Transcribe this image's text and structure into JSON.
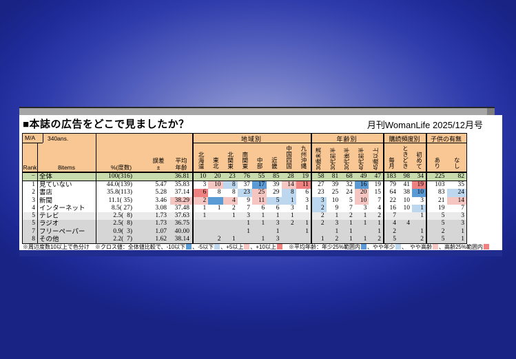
{
  "header": {
    "title": "■本誌の広告をどこで見ましたか？",
    "issue": "月刊WomanLife 2025/12月号"
  },
  "colors": {
    "db": "#5b9bd5",
    "lb": "#bdd7ee",
    "lp": "#f5c6c1",
    "rd": "#ee8080",
    "header_bg": "#f8c794",
    "total_bg": "#c8dbad"
  },
  "table": {
    "meta": {
      "ma": "M/A",
      "ans": "340ans.",
      "rank": "Rank",
      "items": "8items",
      "pct": "%(度数)",
      "err1": "誤差",
      "err2": "±",
      "avg1": "平均",
      "avg2": "年齢"
    },
    "groups": {
      "region": "地域別",
      "age": "年齢別",
      "freq": "購読頻度別",
      "child": "子供の有無"
    },
    "region_cols": [
      "北海道",
      "東北",
      "北関東",
      "南関東",
      "中部",
      "近畿",
      "中国四国",
      "九州沖縄"
    ],
    "age_cols": [
      "30歳未満",
      "30代前半",
      "30代後半",
      "40代前半",
      "45歳以上"
    ],
    "freq_cols": [
      "毎月",
      "ときどき",
      "初めて"
    ],
    "child_cols": [
      "あり",
      "なし"
    ],
    "total_row": {
      "rank": "−",
      "item": "全体",
      "pct": "100(316)",
      "err": "",
      "avg": "36.81",
      "avg_c": "",
      "cells": [
        [
          "10",
          ""
        ],
        [
          "20",
          ""
        ],
        [
          "23",
          ""
        ],
        [
          "76",
          ""
        ],
        [
          "55",
          ""
        ],
        [
          "85",
          ""
        ],
        [
          "28",
          ""
        ],
        [
          "19",
          ""
        ],
        [
          "58",
          ""
        ],
        [
          "81",
          ""
        ],
        [
          "68",
          ""
        ],
        [
          "49",
          ""
        ],
        [
          "47",
          ""
        ],
        [
          "183",
          ""
        ],
        [
          "98",
          ""
        ],
        [
          "34",
          ""
        ],
        [
          "225",
          ""
        ],
        [
          "82",
          ""
        ]
      ]
    },
    "rows": [
      {
        "rank": "1",
        "item": "見ていない",
        "pct": "44.0(139)",
        "err": "5.47",
        "avg": "35.83",
        "avg_c": "",
        "bg": "w",
        "cells": [
          [
            "3",
            ""
          ],
          [
            "10",
            "lp"
          ],
          [
            "8",
            "lb"
          ],
          [
            "37",
            ""
          ],
          [
            "17",
            "db"
          ],
          [
            "39",
            ""
          ],
          [
            "14",
            "lp"
          ],
          [
            "11",
            "rd"
          ],
          [
            "27",
            ""
          ],
          [
            "39",
            ""
          ],
          [
            "32",
            ""
          ],
          [
            "16",
            "db"
          ],
          [
            "19",
            ""
          ],
          [
            "79",
            ""
          ],
          [
            "41",
            ""
          ],
          [
            "19",
            "rd"
          ],
          [
            "103",
            ""
          ],
          [
            "35",
            ""
          ]
        ]
      },
      {
        "rank": "2",
        "item": "書店",
        "pct": "35.8(113)",
        "err": "5.28",
        "avg": "37.14",
        "avg_c": "",
        "bg": "w",
        "cells": [
          [
            "6",
            "rd"
          ],
          [
            "8",
            ""
          ],
          [
            "8",
            ""
          ],
          [
            "23",
            "lb"
          ],
          [
            "25",
            "lp"
          ],
          [
            "29",
            ""
          ],
          [
            "8",
            "lb"
          ],
          [
            "6",
            ""
          ],
          [
            "23",
            ""
          ],
          [
            "25",
            ""
          ],
          [
            "24",
            ""
          ],
          [
            "20",
            "lp"
          ],
          [
            "15",
            ""
          ],
          [
            "64",
            ""
          ],
          [
            "38",
            ""
          ],
          [
            "10",
            "db"
          ],
          [
            "83",
            ""
          ],
          [
            "24",
            "lb"
          ]
        ]
      },
      {
        "rank": "3",
        "item": "新聞",
        "pct": "11.1( 35)",
        "err": "3.46",
        "avg": "38.29",
        "avg_c": "lp",
        "bg": "w",
        "cells": [
          [
            "2",
            "lp"
          ],
          [
            "",
            "db"
          ],
          [
            "4",
            "lp"
          ],
          [
            "9",
            ""
          ],
          [
            "11",
            "lp"
          ],
          [
            "5",
            "lb"
          ],
          [
            "1",
            "lb"
          ],
          [
            "3",
            ""
          ],
          [
            "3",
            "lb"
          ],
          [
            "10",
            ""
          ],
          [
            "5",
            ""
          ],
          [
            "10",
            "lp"
          ],
          [
            "7",
            ""
          ],
          [
            "22",
            ""
          ],
          [
            "10",
            ""
          ],
          [
            "3",
            ""
          ],
          [
            "21",
            ""
          ],
          [
            "14",
            "lp"
          ]
        ]
      },
      {
        "rank": "4",
        "item": "インターネット",
        "pct": "8.5( 27)",
        "err": "3.08",
        "avg": "37.48",
        "avg_c": "",
        "bg": "w",
        "cells": [
          [
            "1",
            ""
          ],
          [
            "1",
            ""
          ],
          [
            "2",
            ""
          ],
          [
            "7",
            ""
          ],
          [
            "6",
            ""
          ],
          [
            "6",
            ""
          ],
          [
            "3",
            ""
          ],
          [
            "1",
            ""
          ],
          [
            "2",
            "lb"
          ],
          [
            "9",
            ""
          ],
          [
            "7",
            ""
          ],
          [
            "3",
            ""
          ],
          [
            "4",
            ""
          ],
          [
            "16",
            ""
          ],
          [
            "10",
            ""
          ],
          [
            "1",
            "lb"
          ],
          [
            "19",
            ""
          ],
          [
            "7",
            ""
          ]
        ]
      },
      {
        "rank": "5",
        "item": "テレビ",
        "pct": "2.5(  8)",
        "err": "1.73",
        "avg": "37.63",
        "avg_c": "",
        "bg": "g1",
        "cells": [
          [
            "1",
            ""
          ],
          [
            "",
            ""
          ],
          [
            "1",
            ""
          ],
          [
            "3",
            ""
          ],
          [
            "1",
            ""
          ],
          [
            "1",
            ""
          ],
          [
            "1",
            ""
          ],
          [
            "",
            ""
          ],
          [
            "2",
            ""
          ],
          [
            "1",
            ""
          ],
          [
            "2",
            ""
          ],
          [
            "1",
            ""
          ],
          [
            "2",
            ""
          ],
          [
            "7",
            ""
          ],
          [
            "",
            ""
          ],
          [
            "1",
            ""
          ],
          [
            "5",
            ""
          ],
          [
            "3",
            ""
          ]
        ]
      },
      {
        "rank": "5",
        "item": "ラジオ",
        "pct": "2.5(  8)",
        "err": "1.73",
        "avg": "36.75",
        "avg_c": "",
        "bg": "g2",
        "cells": [
          [
            "",
            ""
          ],
          [
            "",
            ""
          ],
          [
            "",
            ""
          ],
          [
            "1",
            ""
          ],
          [
            "1",
            ""
          ],
          [
            "3",
            ""
          ],
          [
            "2",
            ""
          ],
          [
            "1",
            ""
          ],
          [
            "2",
            ""
          ],
          [
            "3",
            ""
          ],
          [
            "1",
            ""
          ],
          [
            "1",
            ""
          ],
          [
            "1",
            ""
          ],
          [
            "4",
            ""
          ],
          [
            "4",
            ""
          ],
          [
            "",
            ""
          ],
          [
            "5",
            ""
          ],
          [
            "3",
            ""
          ]
        ]
      },
      {
        "rank": "7",
        "item": "フリーペーパー",
        "pct": "0.9(  3)",
        "err": "1.07",
        "avg": "40.00",
        "avg_c": "",
        "bg": "g2",
        "cells": [
          [
            "",
            ""
          ],
          [
            "",
            ""
          ],
          [
            "",
            ""
          ],
          [
            "1",
            ""
          ],
          [
            "",
            ""
          ],
          [
            "1",
            ""
          ],
          [
            "",
            ""
          ],
          [
            "1",
            ""
          ],
          [
            "",
            ""
          ],
          [
            "1",
            ""
          ],
          [
            "1",
            ""
          ],
          [
            "",
            ""
          ],
          [
            "1",
            ""
          ],
          [
            "2",
            ""
          ],
          [
            "",
            ""
          ],
          [
            "1",
            ""
          ],
          [
            "2",
            ""
          ],
          [
            "1",
            ""
          ]
        ]
      },
      {
        "rank": "8",
        "item": "その他",
        "pct": "2.2(  7)",
        "err": "1.62",
        "avg": "38.14",
        "avg_c": "",
        "bg": "g2",
        "cells": [
          [
            "",
            ""
          ],
          [
            "2",
            ""
          ],
          [
            "1",
            ""
          ],
          [
            "",
            ""
          ],
          [
            "1",
            ""
          ],
          [
            "3",
            ""
          ],
          [
            "",
            ""
          ],
          [
            "",
            ""
          ],
          [
            "1",
            ""
          ],
          [
            "2",
            ""
          ],
          [
            "1",
            ""
          ],
          [
            "1",
            ""
          ],
          [
            "2",
            ""
          ],
          [
            "5",
            ""
          ],
          [
            "",
            ""
          ],
          [
            "2",
            ""
          ],
          [
            "5",
            ""
          ],
          [
            "1",
            ""
          ]
        ]
      }
    ]
  },
  "legend": [
    {
      "t": "※周辺度数10以上で色分け　※クロス値：全体値比較で、-10以下"
    },
    {
      "sq": "db"
    },
    {
      "t": "、-5以下"
    },
    {
      "sq": "lb"
    },
    {
      "t": "、+5以上"
    },
    {
      "sq": "lp"
    },
    {
      "t": "、+10以上"
    },
    {
      "sq": "rd"
    },
    {
      "t": "　※平均年齢：年少25%範囲内"
    },
    {
      "sq": "db"
    },
    {
      "t": "、やや年少"
    },
    {
      "sq": "lb"
    },
    {
      "t": "、　やや高齢"
    },
    {
      "sq": "lp"
    },
    {
      "t": "、高齢25%範囲内"
    },
    {
      "sq": "rd"
    }
  ]
}
